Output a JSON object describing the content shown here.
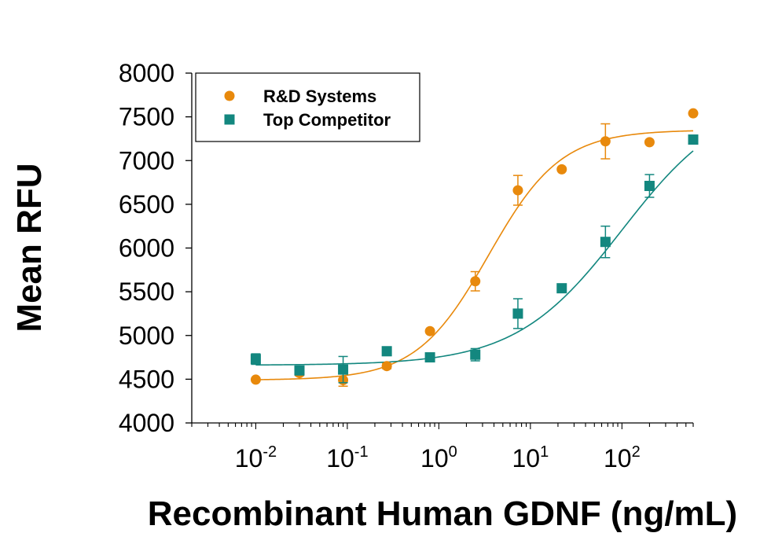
{
  "chart_data": {
    "type": "scatter",
    "title": "",
    "xlabel": "Recombinant Human GDNF (ng/mL)",
    "ylabel": "Mean RFU",
    "xscale": "log",
    "xlim": [
      0.002,
      600
    ],
    "ylim": [
      4000,
      8000
    ],
    "yticks": [
      "4000",
      "4500",
      "5000",
      "5500",
      "6000",
      "6500",
      "7000",
      "7500",
      "8000"
    ],
    "xticks": [
      {
        "base": "10",
        "exp": "-2",
        "value": 0.01
      },
      {
        "base": "10",
        "exp": "-1",
        "value": 0.1
      },
      {
        "base": "10",
        "exp": "0",
        "value": 1
      },
      {
        "base": "10",
        "exp": "1",
        "value": 10
      },
      {
        "base": "10",
        "exp": "2",
        "value": 100
      }
    ],
    "grid": false,
    "legend_position": "top-left",
    "series": [
      {
        "name": "R&D Systems",
        "color": "#e8890c",
        "marker": "circle",
        "points": [
          {
            "x": 0.01,
            "y": 4495,
            "err": 0
          },
          {
            "x": 0.03,
            "y": 4570,
            "err": 30
          },
          {
            "x": 0.09,
            "y": 4490,
            "err": 70
          },
          {
            "x": 0.27,
            "y": 4650,
            "err": 30
          },
          {
            "x": 0.8,
            "y": 5050,
            "err": 0
          },
          {
            "x": 2.5,
            "y": 5620,
            "err": 110
          },
          {
            "x": 7.3,
            "y": 6660,
            "err": 170
          },
          {
            "x": 22,
            "y": 6900,
            "err": 0
          },
          {
            "x": 66,
            "y": 7220,
            "err": 200
          },
          {
            "x": 200,
            "y": 7210,
            "err": 0
          },
          {
            "x": 600,
            "y": 7540,
            "err": 0
          }
        ],
        "fit": {
          "bottom": 4490,
          "top": 7350,
          "ec50": 3.5,
          "hill": 1.1
        }
      },
      {
        "name": "Top Competitor",
        "color": "#13877f",
        "marker": "square",
        "points": [
          {
            "x": 0.01,
            "y": 4730,
            "err": 60
          },
          {
            "x": 0.03,
            "y": 4600,
            "err": 40
          },
          {
            "x": 0.09,
            "y": 4610,
            "err": 150
          },
          {
            "x": 0.27,
            "y": 4820,
            "err": 50
          },
          {
            "x": 0.8,
            "y": 4750,
            "err": 30
          },
          {
            "x": 2.5,
            "y": 4780,
            "err": 70
          },
          {
            "x": 7.3,
            "y": 5250,
            "err": 170
          },
          {
            "x": 22,
            "y": 5540,
            "err": 40
          },
          {
            "x": 66,
            "y": 6070,
            "err": 180
          },
          {
            "x": 200,
            "y": 6710,
            "err": 130
          },
          {
            "x": 600,
            "y": 7240,
            "err": 0
          }
        ],
        "fit": {
          "bottom": 4660,
          "top": 7750,
          "ec50": 100,
          "hill": 0.75
        }
      }
    ]
  }
}
